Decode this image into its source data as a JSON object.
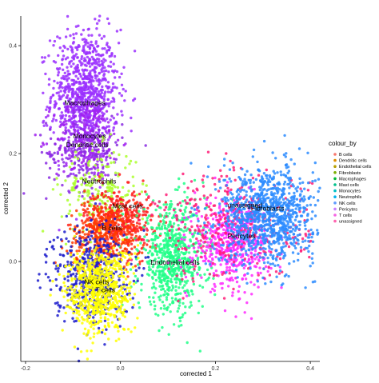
{
  "chart_data": {
    "type": "scatter",
    "xlabel": "corrected 1",
    "ylabel": "corrected 2",
    "xlim": [
      -0.21,
      0.42
    ],
    "ylim": [
      -0.185,
      0.455
    ],
    "x_ticks": [
      -0.2,
      0.0,
      0.2,
      0.4
    ],
    "x_tick_labels": [
      "-0.2",
      "0.0",
      "0.2",
      "0.4"
    ],
    "y_ticks": [
      0.0,
      0.2,
      0.4
    ],
    "y_tick_labels": [
      "0.0",
      "0.2",
      "0.4"
    ],
    "grid": false,
    "legend": {
      "title": "colour_by",
      "placement": "right",
      "entries": [
        {
          "name": "B cells",
          "color": "#F8766D"
        },
        {
          "name": "Dendritic cells",
          "color": "#DE8C00"
        },
        {
          "name": "Endothelial cells",
          "color": "#B79F00"
        },
        {
          "name": "Fibroblasts",
          "color": "#7CAE00"
        },
        {
          "name": "Macrophages",
          "color": "#00BA38"
        },
        {
          "name": "Mast cells",
          "color": "#00C08B"
        },
        {
          "name": "Monocytes",
          "color": "#00BFC4"
        },
        {
          "name": "Neutrophils",
          "color": "#00B4F0"
        },
        {
          "name": "NK cells",
          "color": "#619CFF"
        },
        {
          "name": "Pericytes",
          "color": "#C77CFF"
        },
        {
          "name": "T cells",
          "color": "#F564E3"
        },
        {
          "name": "unassigned",
          "color": "#FF64B0"
        }
      ]
    },
    "series": [
      {
        "name": "Macrophages",
        "color": "#9b30ff",
        "center": [
          -0.075,
          0.31
        ],
        "spread": [
          0.035,
          0.06
        ],
        "count": 900
      },
      {
        "name": "Monocytes",
        "color": "#a020f0",
        "center": [
          -0.07,
          0.225
        ],
        "spread": [
          0.035,
          0.04
        ],
        "count": 250
      },
      {
        "name": "Dendritic cells",
        "color": "#8a2be2",
        "center": [
          -0.075,
          0.2
        ],
        "spread": [
          0.04,
          0.035
        ],
        "count": 150
      },
      {
        "name": "Neutrophils",
        "color": "#adff2f",
        "center": [
          -0.045,
          0.13
        ],
        "spread": [
          0.04,
          0.04
        ],
        "count": 220
      },
      {
        "name": "Mast cells",
        "color": "#ff2020",
        "center": [
          -0.005,
          0.075
        ],
        "spread": [
          0.035,
          0.03
        ],
        "count": 420
      },
      {
        "name": "B cells",
        "color": "#ff3a00",
        "center": [
          -0.03,
          0.05
        ],
        "spread": [
          0.04,
          0.03
        ],
        "count": 350
      },
      {
        "name": "Endothelial cells",
        "color": "#22ff88",
        "center": [
          0.11,
          0.005
        ],
        "spread": [
          0.035,
          0.05
        ],
        "count": 700
      },
      {
        "name": "Pericytes",
        "color": "#ff2bff",
        "center": [
          0.235,
          0.035
        ],
        "spread": [
          0.04,
          0.04
        ],
        "count": 550
      },
      {
        "name": "unassigned",
        "color": "#ff1e78",
        "center": [
          0.235,
          0.065
        ],
        "spread": [
          0.08,
          0.05
        ],
        "count": 350
      },
      {
        "name": "Fibroblasts",
        "color": "#2d8cff",
        "center": [
          0.31,
          0.085
        ],
        "spread": [
          0.05,
          0.045
        ],
        "count": 1000
      },
      {
        "name": "NK cells",
        "color": "#1c1ccc",
        "center": [
          -0.06,
          -0.025
        ],
        "spread": [
          0.04,
          0.045
        ],
        "count": 500
      },
      {
        "name": "T cells",
        "color": "#ffff00",
        "center": [
          -0.045,
          -0.055
        ],
        "spread": [
          0.035,
          0.04
        ],
        "count": 700
      }
    ],
    "annotations": [
      {
        "text": "Macrophages",
        "x": -0.075,
        "y": 0.29
      },
      {
        "text": "Monocytes",
        "x": -0.065,
        "y": 0.228
      },
      {
        "text": "Dendritic cells",
        "x": -0.07,
        "y": 0.212
      },
      {
        "text": "Neutrophils",
        "x": -0.045,
        "y": 0.145
      },
      {
        "text": "Mast cells",
        "x": 0.015,
        "y": 0.099
      },
      {
        "text": "B cells",
        "x": -0.018,
        "y": 0.058
      },
      {
        "text": "Endothelial cells",
        "x": 0.115,
        "y": -0.006
      },
      {
        "text": "unassigned",
        "x": 0.262,
        "y": 0.1
      },
      {
        "text": "Fibroblasts",
        "x": 0.31,
        "y": 0.094
      },
      {
        "text": "Pericytes",
        "x": 0.255,
        "y": 0.043
      },
      {
        "text": "NK cells",
        "x": -0.05,
        "y": -0.042
      },
      {
        "text": "T cells",
        "x": -0.032,
        "y": -0.057
      }
    ]
  }
}
